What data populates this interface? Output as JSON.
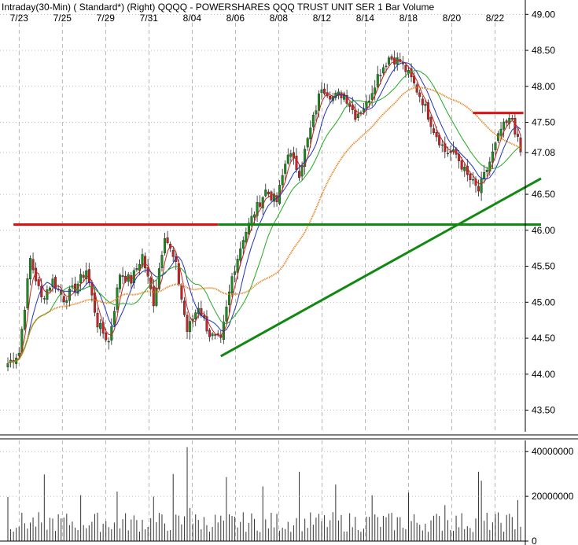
{
  "header": {
    "title": "Intraday(30-Min) ( Standard*)   (Right)  QQQQ - POWERSHARES QQQ TRUST UNIT SER 1  Bar  Volume"
  },
  "colors": {
    "up_candle": "#1a8f1a",
    "down_candle": "#cc2222",
    "ma_fast": "#cc2222",
    "ma_blue": "#2233bb",
    "ma_green": "#22aa22",
    "ma_orange": "#e07a10",
    "resistance": "#dd1111",
    "support": "#118811",
    "grid": "#999999"
  },
  "chart_data": [
    {
      "type": "candlestick",
      "interval": "30-Min",
      "symbol": "QQQQ",
      "x_tick_labels": [
        "7/23",
        "7/25",
        "7/29",
        "7/31",
        "8/04",
        "8/06",
        "8/08",
        "8/12",
        "8/14",
        "8/18",
        "8/20",
        "8/22"
      ],
      "y_tick_labels": [
        "49.00",
        "48.50",
        "48.00",
        "47.50",
        "47.08",
        "46.50",
        "46.00",
        "45.50",
        "45.00",
        "44.50",
        "44.00",
        "43.50"
      ],
      "ylim": [
        43.2,
        49.2
      ],
      "last_price": 47.08,
      "close_path": [
        {
          "t": 0,
          "v": 44.15
        },
        {
          "t": 4,
          "v": 44.3
        },
        {
          "t": 8,
          "v": 45.6
        },
        {
          "t": 12,
          "v": 45.05
        },
        {
          "t": 16,
          "v": 45.3
        },
        {
          "t": 20,
          "v": 45.05
        },
        {
          "t": 24,
          "v": 45.2
        },
        {
          "t": 28,
          "v": 45.45
        },
        {
          "t": 32,
          "v": 44.7
        },
        {
          "t": 36,
          "v": 44.45
        },
        {
          "t": 40,
          "v": 45.4
        },
        {
          "t": 44,
          "v": 45.3
        },
        {
          "t": 48,
          "v": 45.65
        },
        {
          "t": 52,
          "v": 45.0
        },
        {
          "t": 56,
          "v": 45.95
        },
        {
          "t": 60,
          "v": 45.5
        },
        {
          "t": 64,
          "v": 44.6
        },
        {
          "t": 68,
          "v": 44.95
        },
        {
          "t": 72,
          "v": 44.55
        },
        {
          "t": 76,
          "v": 44.45
        },
        {
          "t": 80,
          "v": 45.35
        },
        {
          "t": 84,
          "v": 45.9
        },
        {
          "t": 88,
          "v": 46.25
        },
        {
          "t": 92,
          "v": 46.55
        },
        {
          "t": 96,
          "v": 46.4
        },
        {
          "t": 100,
          "v": 47.1
        },
        {
          "t": 104,
          "v": 46.8
        },
        {
          "t": 108,
          "v": 47.4
        },
        {
          "t": 112,
          "v": 48.0
        },
        {
          "t": 116,
          "v": 47.85
        },
        {
          "t": 120,
          "v": 47.9
        },
        {
          "t": 124,
          "v": 47.6
        },
        {
          "t": 128,
          "v": 47.75
        },
        {
          "t": 132,
          "v": 48.15
        },
        {
          "t": 136,
          "v": 48.4
        },
        {
          "t": 140,
          "v": 48.35
        },
        {
          "t": 144,
          "v": 48.1
        },
        {
          "t": 148,
          "v": 47.8
        },
        {
          "t": 152,
          "v": 47.4
        },
        {
          "t": 156,
          "v": 47.1
        },
        {
          "t": 160,
          "v": 47.05
        },
        {
          "t": 164,
          "v": 46.75
        },
        {
          "t": 168,
          "v": 46.55
        },
        {
          "t": 172,
          "v": 46.95
        },
        {
          "t": 176,
          "v": 47.4
        },
        {
          "t": 180,
          "v": 47.55
        },
        {
          "t": 183,
          "v": 47.08
        }
      ],
      "volume_ylim": [
        0,
        45000000
      ],
      "volume_tick_labels": [
        "40000000",
        "20000000",
        "0"
      ],
      "trendlines": [
        {
          "name": "resistance-1",
          "color": "red",
          "from": {
            "t": 2,
            "v": 46.08
          },
          "to": {
            "t": 75,
            "v": 46.08
          }
        },
        {
          "name": "resistance-2",
          "color": "red",
          "from": {
            "t": 166,
            "v": 47.63
          },
          "to": {
            "t": 184,
            "v": 47.63
          }
        },
        {
          "name": "support-horizontal",
          "color": "green",
          "from": {
            "t": 75,
            "v": 46.08
          },
          "to": {
            "t": 195,
            "v": 46.08
          }
        },
        {
          "name": "support-rising",
          "color": "green",
          "from": {
            "t": 76,
            "v": 44.25
          },
          "to": {
            "t": 195,
            "v": 46.72
          }
        }
      ]
    }
  ]
}
